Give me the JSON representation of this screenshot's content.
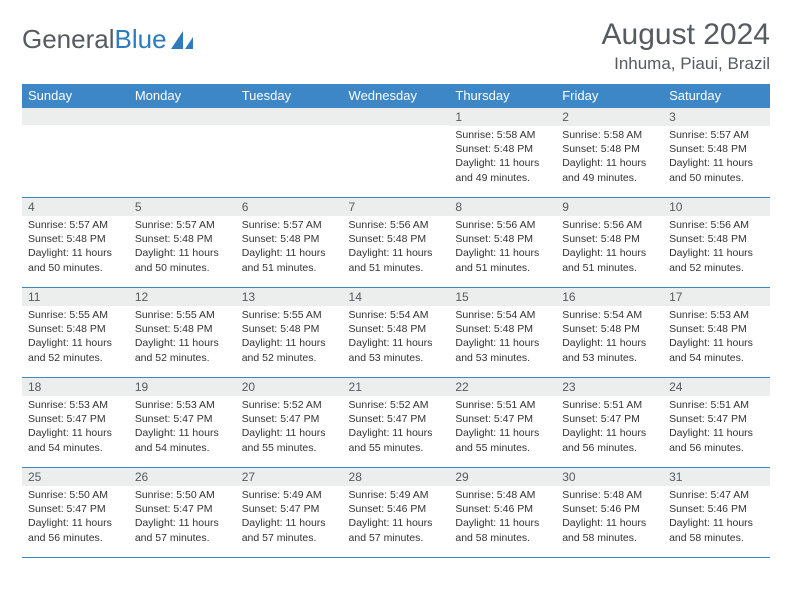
{
  "brand": {
    "part1": "General",
    "part2": "Blue"
  },
  "title": "August 2024",
  "location": "Inhuma, Piaui, Brazil",
  "colors": {
    "header_bg": "#3d87c7",
    "header_text": "#ffffff",
    "daynum_bg": "#eceded",
    "border": "#3d87c7",
    "title_text": "#555b61",
    "body_text": "#333333",
    "logo_gray": "#555b61",
    "logo_blue": "#2e7bbf"
  },
  "typography": {
    "title_fontsize": 30,
    "location_fontsize": 17,
    "weekday_fontsize": 13,
    "daynum_fontsize": 12,
    "info_fontsize": 10.5
  },
  "weekdays": [
    "Sunday",
    "Monday",
    "Tuesday",
    "Wednesday",
    "Thursday",
    "Friday",
    "Saturday"
  ],
  "first_weekday_index": 4,
  "days": [
    {
      "n": 1,
      "sunrise": "5:58 AM",
      "sunset": "5:48 PM",
      "daylight": "11 hours and 49 minutes."
    },
    {
      "n": 2,
      "sunrise": "5:58 AM",
      "sunset": "5:48 PM",
      "daylight": "11 hours and 49 minutes."
    },
    {
      "n": 3,
      "sunrise": "5:57 AM",
      "sunset": "5:48 PM",
      "daylight": "11 hours and 50 minutes."
    },
    {
      "n": 4,
      "sunrise": "5:57 AM",
      "sunset": "5:48 PM",
      "daylight": "11 hours and 50 minutes."
    },
    {
      "n": 5,
      "sunrise": "5:57 AM",
      "sunset": "5:48 PM",
      "daylight": "11 hours and 50 minutes."
    },
    {
      "n": 6,
      "sunrise": "5:57 AM",
      "sunset": "5:48 PM",
      "daylight": "11 hours and 51 minutes."
    },
    {
      "n": 7,
      "sunrise": "5:56 AM",
      "sunset": "5:48 PM",
      "daylight": "11 hours and 51 minutes."
    },
    {
      "n": 8,
      "sunrise": "5:56 AM",
      "sunset": "5:48 PM",
      "daylight": "11 hours and 51 minutes."
    },
    {
      "n": 9,
      "sunrise": "5:56 AM",
      "sunset": "5:48 PM",
      "daylight": "11 hours and 51 minutes."
    },
    {
      "n": 10,
      "sunrise": "5:56 AM",
      "sunset": "5:48 PM",
      "daylight": "11 hours and 52 minutes."
    },
    {
      "n": 11,
      "sunrise": "5:55 AM",
      "sunset": "5:48 PM",
      "daylight": "11 hours and 52 minutes."
    },
    {
      "n": 12,
      "sunrise": "5:55 AM",
      "sunset": "5:48 PM",
      "daylight": "11 hours and 52 minutes."
    },
    {
      "n": 13,
      "sunrise": "5:55 AM",
      "sunset": "5:48 PM",
      "daylight": "11 hours and 52 minutes."
    },
    {
      "n": 14,
      "sunrise": "5:54 AM",
      "sunset": "5:48 PM",
      "daylight": "11 hours and 53 minutes."
    },
    {
      "n": 15,
      "sunrise": "5:54 AM",
      "sunset": "5:48 PM",
      "daylight": "11 hours and 53 minutes."
    },
    {
      "n": 16,
      "sunrise": "5:54 AM",
      "sunset": "5:48 PM",
      "daylight": "11 hours and 53 minutes."
    },
    {
      "n": 17,
      "sunrise": "5:53 AM",
      "sunset": "5:48 PM",
      "daylight": "11 hours and 54 minutes."
    },
    {
      "n": 18,
      "sunrise": "5:53 AM",
      "sunset": "5:47 PM",
      "daylight": "11 hours and 54 minutes."
    },
    {
      "n": 19,
      "sunrise": "5:53 AM",
      "sunset": "5:47 PM",
      "daylight": "11 hours and 54 minutes."
    },
    {
      "n": 20,
      "sunrise": "5:52 AM",
      "sunset": "5:47 PM",
      "daylight": "11 hours and 55 minutes."
    },
    {
      "n": 21,
      "sunrise": "5:52 AM",
      "sunset": "5:47 PM",
      "daylight": "11 hours and 55 minutes."
    },
    {
      "n": 22,
      "sunrise": "5:51 AM",
      "sunset": "5:47 PM",
      "daylight": "11 hours and 55 minutes."
    },
    {
      "n": 23,
      "sunrise": "5:51 AM",
      "sunset": "5:47 PM",
      "daylight": "11 hours and 56 minutes."
    },
    {
      "n": 24,
      "sunrise": "5:51 AM",
      "sunset": "5:47 PM",
      "daylight": "11 hours and 56 minutes."
    },
    {
      "n": 25,
      "sunrise": "5:50 AM",
      "sunset": "5:47 PM",
      "daylight": "11 hours and 56 minutes."
    },
    {
      "n": 26,
      "sunrise": "5:50 AM",
      "sunset": "5:47 PM",
      "daylight": "11 hours and 57 minutes."
    },
    {
      "n": 27,
      "sunrise": "5:49 AM",
      "sunset": "5:47 PM",
      "daylight": "11 hours and 57 minutes."
    },
    {
      "n": 28,
      "sunrise": "5:49 AM",
      "sunset": "5:46 PM",
      "daylight": "11 hours and 57 minutes."
    },
    {
      "n": 29,
      "sunrise": "5:48 AM",
      "sunset": "5:46 PM",
      "daylight": "11 hours and 58 minutes."
    },
    {
      "n": 30,
      "sunrise": "5:48 AM",
      "sunset": "5:46 PM",
      "daylight": "11 hours and 58 minutes."
    },
    {
      "n": 31,
      "sunrise": "5:47 AM",
      "sunset": "5:46 PM",
      "daylight": "11 hours and 58 minutes."
    }
  ],
  "labels": {
    "sunrise": "Sunrise:",
    "sunset": "Sunset:",
    "daylight": "Daylight:"
  }
}
